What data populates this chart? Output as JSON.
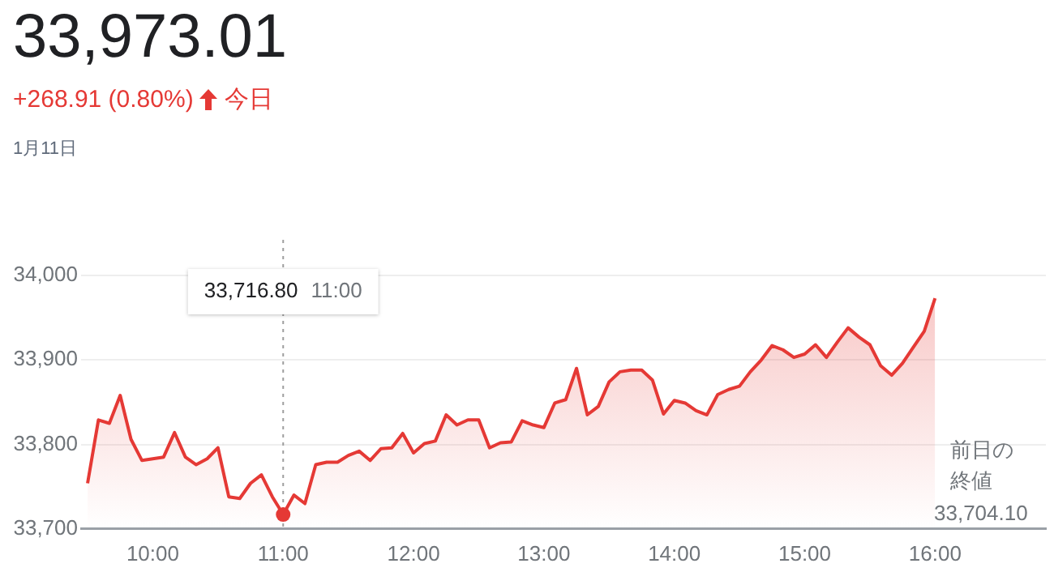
{
  "chart_data": {
    "type": "area",
    "title": "33,973.01",
    "subtitle": "+268.91 (0.80%)",
    "annotations": [
      "今日",
      "1月11日",
      "前日の終値",
      "33,704.10",
      "33,716.80 11:00"
    ],
    "x": [
      9.5,
      9.583,
      9.667,
      9.75,
      9.833,
      9.917,
      10,
      10.083,
      10.167,
      10.25,
      10.333,
      10.417,
      10.5,
      10.583,
      10.667,
      10.75,
      10.833,
      10.917,
      11,
      11.083,
      11.167,
      11.25,
      11.333,
      11.417,
      11.5,
      11.583,
      11.667,
      11.75,
      11.833,
      11.917,
      12,
      12.083,
      12.167,
      12.25,
      12.333,
      12.417,
      12.5,
      12.583,
      12.667,
      12.75,
      12.833,
      12.917,
      13,
      13.083,
      13.167,
      13.25,
      13.333,
      13.417,
      13.5,
      13.583,
      13.667,
      13.75,
      13.833,
      13.917,
      14,
      14.083,
      14.167,
      14.25,
      14.333,
      14.417,
      14.5,
      14.583,
      14.667,
      14.75,
      14.833,
      14.917,
      15,
      15.083,
      15.167,
      15.25,
      15.333,
      15.417,
      15.5,
      15.583,
      15.667,
      15.75,
      15.833,
      15.917,
      16
    ],
    "series": [
      {
        "color": "#e53935",
        "values": [
          33754,
          33829,
          33825,
          33858,
          33806,
          33781,
          33783,
          33785,
          33814,
          33785,
          33776,
          33783,
          33796,
          33738,
          33736,
          33754,
          33764,
          33738,
          33717,
          33740,
          33730,
          33776,
          33779,
          33779,
          33787,
          33792,
          33781,
          33795,
          33796,
          33813,
          33790,
          33801,
          33804,
          33835,
          33823,
          33829,
          33829,
          33796,
          33802,
          33803,
          33828,
          33823,
          33820,
          33849,
          33853,
          33890,
          33835,
          33845,
          33874,
          33886,
          33888,
          33888,
          33876,
          33836,
          33852,
          33849,
          33840,
          33835,
          33859,
          33865,
          33869,
          33886,
          33900,
          33917,
          33912,
          33903,
          33907,
          33918,
          33903,
          33921,
          33938,
          33927,
          33918,
          33893,
          33882,
          33896,
          33915,
          33934,
          33973
        ]
      }
    ],
    "xlim": [
      9.45,
      16.85
    ],
    "xticks": [
      {
        "value": 10,
        "label": "10:00"
      },
      {
        "value": 11,
        "label": "11:00"
      },
      {
        "value": 12,
        "label": "12:00"
      },
      {
        "value": 13,
        "label": "13:00"
      },
      {
        "value": 14,
        "label": "14:00"
      },
      {
        "value": 15,
        "label": "15:00"
      },
      {
        "value": 16,
        "label": "16:00"
      }
    ],
    "ylim": [
      33700,
      34000
    ],
    "yticks": [
      {
        "value": 33700,
        "label": "33,700"
      },
      {
        "value": 33800,
        "label": "33,800"
      },
      {
        "value": 33900,
        "label": "33,900"
      },
      {
        "value": 34000,
        "label": "34,000"
      }
    ],
    "ref_lines": [
      {
        "axis": "x",
        "value": 11,
        "color": "#9e9e9e",
        "line_style": "dotted"
      }
    ],
    "grid": "y",
    "legend": false,
    "marker": "none",
    "line_style": "solid"
  }
}
